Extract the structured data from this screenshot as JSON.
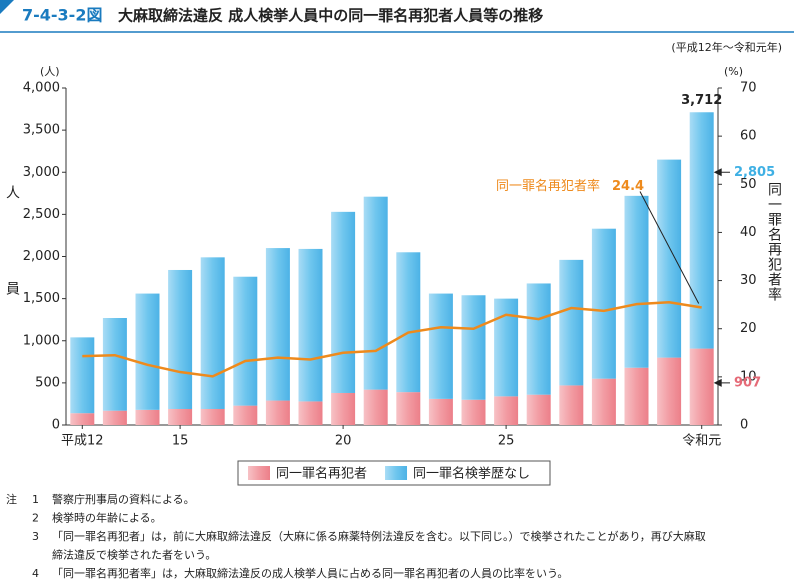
{
  "header": {
    "figure_number": "7-4-3-2図",
    "title": "大麻取締法違反 成人検挙人員中の同一罪名再犯者人員等の推移"
  },
  "chart_data": {
    "type": "bar_line",
    "subtitle": "(平成12年～令和元年)",
    "y_unit": "(人)",
    "y_label": "人員",
    "y2_unit": "(%)",
    "y2_label": "同一罪名再犯者率",
    "categories": [
      "平成12",
      null,
      null,
      "15",
      null,
      null,
      null,
      null,
      "20",
      null,
      null,
      null,
      null,
      "25",
      null,
      null,
      null,
      null,
      null,
      "令和元"
    ],
    "ylim": [
      0,
      4000
    ],
    "yticks": [
      0,
      {
        "value": 500,
        "label": "500"
      },
      {
        "value": 1000,
        "label": "1,000"
      },
      {
        "value": 1500,
        "label": "1,500"
      },
      {
        "value": 2000,
        "label": "2,000"
      },
      {
        "value": 2500,
        "label": "2,500"
      },
      {
        "value": 3000,
        "label": "3,000"
      },
      {
        "value": 3500,
        "label": "3,500"
      },
      {
        "value": 4000,
        "label": "4,000"
      }
    ],
    "y2lim": [
      0,
      70
    ],
    "y2ticks": [
      0,
      10,
      20,
      30,
      40,
      50,
      60,
      70
    ],
    "series": [
      {
        "name": "同一罪名再犯者",
        "color": "#f29ca3",
        "kind": "bar",
        "values": [
          140,
          170,
          180,
          190,
          190,
          230,
          290,
          280,
          380,
          420,
          390,
          310,
          300,
          340,
          360,
          470,
          550,
          680,
          800,
          907
        ],
        "value_labels": [
          null,
          null,
          null,
          null,
          null,
          null,
          null,
          null,
          null,
          null,
          null,
          null,
          null,
          null,
          null,
          null,
          null,
          null,
          null,
          "907"
        ]
      },
      {
        "name": "同一罪名検挙歴なし",
        "color": "#6fc6ee",
        "kind": "bar",
        "values": [
          900,
          1100,
          1380,
          1650,
          1800,
          1530,
          1810,
          1810,
          2150,
          2290,
          1660,
          1250,
          1240,
          1160,
          1320,
          1490,
          1780,
          2040,
          2350,
          2805
        ],
        "value_labels": [
          null,
          null,
          null,
          null,
          null,
          null,
          null,
          null,
          null,
          null,
          null,
          null,
          null,
          null,
          null,
          null,
          null,
          null,
          null,
          "2,805"
        ]
      },
      {
        "name": "同一罪名再犯者率",
        "color": "#ee8a1c",
        "kind": "line",
        "axis": "y2",
        "values": [
          14.3,
          14.5,
          12.5,
          11.0,
          10.1,
          13.3,
          14.0,
          13.6,
          15.0,
          15.4,
          19.2,
          20.3,
          20.0,
          22.9,
          22.0,
          24.3,
          23.7,
          25.1,
          25.5,
          24.4
        ],
        "value_labels": [
          null,
          null,
          null,
          null,
          null,
          null,
          null,
          null,
          null,
          null,
          null,
          null,
          null,
          null,
          null,
          null,
          null,
          null,
          null,
          "24.4"
        ]
      }
    ],
    "total_label": {
      "value": 3712,
      "label": "3,712"
    }
  },
  "notes": {
    "label": "注",
    "items": [
      {
        "num": "1",
        "text": "警察庁刑事局の資料による。"
      },
      {
        "num": "2",
        "text": "検挙時の年齢による。"
      },
      {
        "num": "3",
        "text": "「同一罪名再犯者」は，前に大麻取締法違反（大麻に係る麻薬特例法違反を含む。以下同じ。）で検挙されたことがあり，再び大麻取"
      },
      {
        "num": "",
        "text": "締法違反で検挙された者をいう。"
      },
      {
        "num": "4",
        "text": "「同一罪名再犯者率」は，大麻取締法違反の成人検挙人員に占める同一罪名再犯者の人員の比率をいう。"
      }
    ]
  }
}
